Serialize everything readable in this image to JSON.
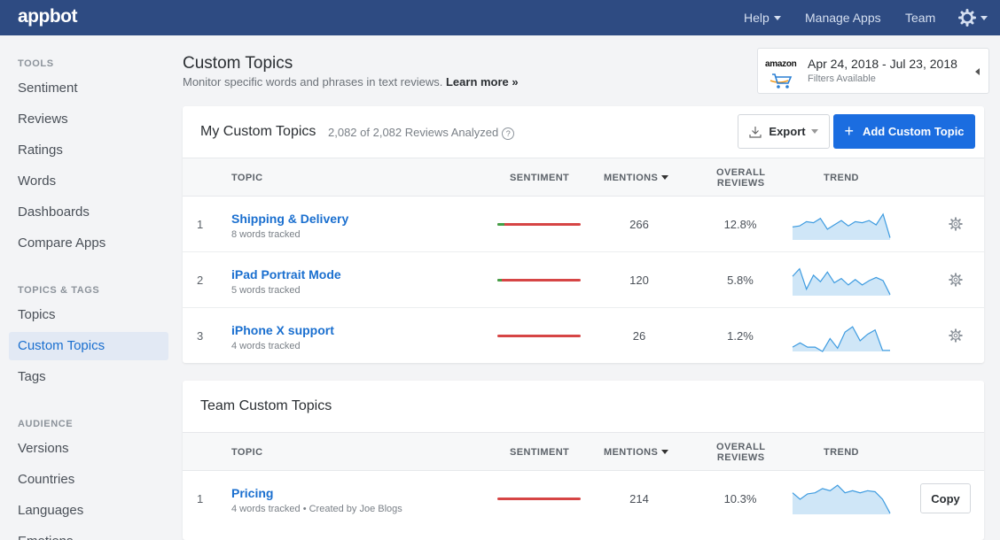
{
  "app": {
    "logo": "appbot"
  },
  "topnav": {
    "help": "Help",
    "manage_apps": "Manage Apps",
    "team": "Team"
  },
  "sidebar": {
    "sections": [
      {
        "label": "TOOLS",
        "items": [
          "Sentiment",
          "Reviews",
          "Ratings",
          "Words",
          "Dashboards",
          "Compare Apps"
        ]
      },
      {
        "label": "TOPICS & TAGS",
        "items": [
          "Topics",
          "Custom Topics",
          "Tags"
        ]
      },
      {
        "label": "AUDIENCE",
        "items": [
          "Versions",
          "Countries",
          "Languages",
          "Emotions"
        ]
      }
    ],
    "active": "Custom Topics"
  },
  "header": {
    "title": "Custom Topics",
    "subtitle": "Monitor specific words and phrases in text reviews.",
    "learn_more": "Learn more »"
  },
  "date_filter": {
    "store": "amazon",
    "range": "Apr 24, 2018 - Jul 23, 2018",
    "filters": "Filters Available"
  },
  "columns": {
    "topic": "TOPIC",
    "sentiment": "SENTIMENT",
    "mentions": "MENTIONS",
    "overall_1": "OVERALL",
    "overall_2": "REVIEWS",
    "trend": "TREND"
  },
  "my_topics": {
    "title": "My Custom Topics",
    "count": "2,082 of 2,082 Reviews Analyzed",
    "export_label": "Export",
    "add_label": "Add Custom Topic",
    "rows": [
      {
        "index": "1",
        "name": "Shipping & Delivery",
        "sub": "8 words tracked",
        "positive": 0.08,
        "mentions": "266",
        "overall": "12.8%",
        "trend": [
          12,
          13,
          17,
          16,
          20,
          10,
          14,
          18,
          13,
          17,
          16,
          18,
          14,
          24,
          2
        ]
      },
      {
        "index": "2",
        "name": "iPad Portrait Mode",
        "sub": "5 words tracked",
        "positive": 0.05,
        "mentions": "120",
        "overall": "5.8%",
        "trend": [
          18,
          25,
          6,
          19,
          13,
          22,
          12,
          16,
          10,
          15,
          10,
          14,
          17,
          14,
          1
        ]
      },
      {
        "index": "3",
        "name": "iPhone X support",
        "sub": "4 words tracked",
        "positive": 0,
        "mentions": "26",
        "overall": "1.2%",
        "trend": [
          4,
          8,
          4,
          4,
          0,
          12,
          3,
          18,
          23,
          10,
          16,
          20,
          1,
          1
        ]
      }
    ]
  },
  "team_topics": {
    "title": "Team Custom Topics",
    "copy_label": "Copy",
    "rows": [
      {
        "index": "1",
        "name": "Pricing",
        "sub": "4 words tracked • Created by Joe Blogs",
        "positive": 0,
        "mentions": "214",
        "overall": "10.3%",
        "trend": [
          20,
          14,
          19,
          20,
          24,
          22,
          27,
          20,
          22,
          20,
          22,
          21,
          14,
          1
        ]
      }
    ]
  }
}
